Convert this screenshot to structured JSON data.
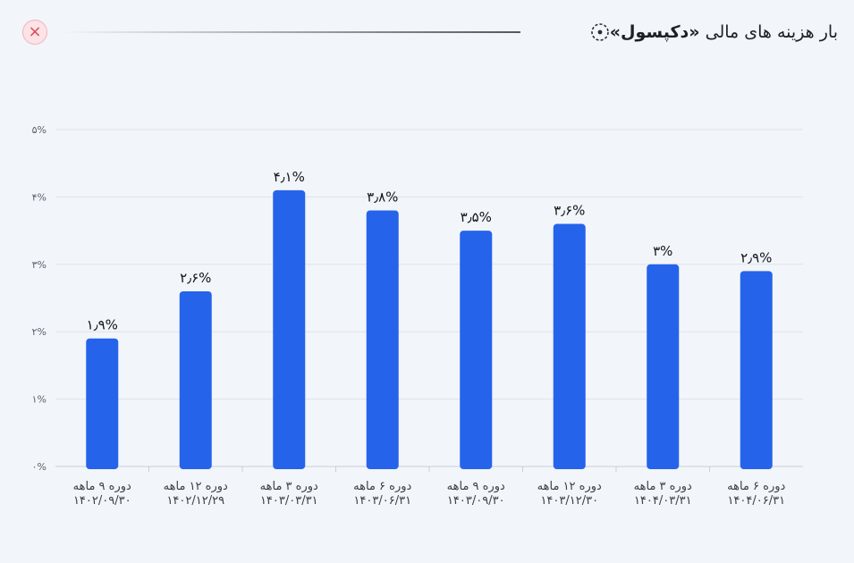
{
  "header": {
    "title_prefix": "بار هزینه های مالی",
    "title_brand": "«دکپسول»",
    "icon": "target-icon",
    "close_icon": "close-icon",
    "close_symbol": "×"
  },
  "colors": {
    "bar": "#2563eb",
    "grid": "#dde3ec",
    "close_accent": "#e0455a"
  },
  "chart_data": {
    "type": "bar",
    "title": "بار هزینه های مالی «دکپسول»",
    "xlabel": "",
    "ylabel": "",
    "ylim": [
      0,
      5
    ],
    "yticks": [
      0,
      1,
      2,
      3,
      4,
      5
    ],
    "ytick_labels": [
      "۰%",
      "۱%",
      "۲%",
      "۳%",
      "۴%",
      "۵%"
    ],
    "grid": true,
    "categories": [
      [
        "دوره ۹ ماهه",
        "۱۴۰۲/۰۹/۳۰"
      ],
      [
        "دوره ۱۲ ماهه",
        "۱۴۰۲/۱۲/۲۹"
      ],
      [
        "دوره ۳ ماهه",
        "۱۴۰۳/۰۳/۳۱"
      ],
      [
        "دوره ۶ ماهه",
        "۱۴۰۳/۰۶/۳۱"
      ],
      [
        "دوره ۹ ماهه",
        "۱۴۰۳/۰۹/۳۰"
      ],
      [
        "دوره ۱۲ ماهه",
        "۱۴۰۳/۱۲/۳۰"
      ],
      [
        "دوره ۳ ماهه",
        "۱۴۰۴/۰۳/۳۱"
      ],
      [
        "دوره ۶ ماهه",
        "۱۴۰۴/۰۶/۳۱"
      ]
    ],
    "values": [
      1.9,
      2.6,
      4.1,
      3.8,
      3.5,
      3.6,
      3.0,
      2.9
    ],
    "value_labels": [
      "۱٫۹%",
      "۲٫۶%",
      "۴٫۱%",
      "۳٫۸%",
      "۳٫۵%",
      "۳٫۶%",
      "۳%",
      "۲٫۹%"
    ]
  }
}
